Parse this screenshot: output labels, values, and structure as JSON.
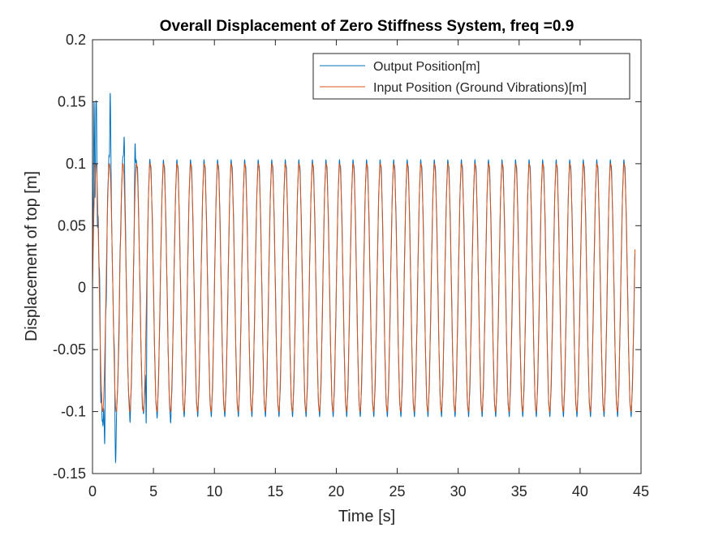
{
  "chart_data": {
    "type": "line",
    "title": "Overall Displacement of Zero Stiffness System, freq =0.9",
    "xlabel": "Time [s]",
    "ylabel": "Displacement of top [m]",
    "xlim": [
      0,
      45
    ],
    "ylim": [
      -0.15,
      0.2
    ],
    "xticks": [
      0,
      5,
      10,
      15,
      20,
      25,
      30,
      35,
      40,
      45
    ],
    "yticks": [
      -0.15,
      -0.1,
      -0.05,
      0,
      0.05,
      0.1,
      0.15,
      0.2
    ],
    "ytick_labels": [
      "-0.15",
      "-0.1",
      "-0.05",
      "0",
      "0.05",
      "0.1",
      "0.15",
      "0.2"
    ],
    "grid": false,
    "legend_position": "top-right",
    "x_end": 44.5,
    "series": [
      {
        "name": "Output Position[m]",
        "color": "#0072BD",
        "frequency_hz": 0.9,
        "steady_amplitude": 0.102,
        "transient_peaks": [
          {
            "x": 0.13,
            "y": 0.148
          },
          {
            "x": 0.3,
            "y": 0.153
          },
          {
            "x": 0.8,
            "y": -0.11
          },
          {
            "x": 1.0,
            "y": -0.126
          },
          {
            "x": 1.45,
            "y": 0.156
          },
          {
            "x": 1.9,
            "y": -0.142
          },
          {
            "x": 2.6,
            "y": 0.12
          },
          {
            "x": 3.5,
            "y": 0.116
          },
          {
            "x": 4.4,
            "y": -0.108
          },
          {
            "x": 6.4,
            "y": -0.107
          }
        ]
      },
      {
        "name": "Input Position (Ground Vibrations)[m]",
        "color": "#D95319",
        "frequency_hz": 0.9,
        "amplitude": 0.1
      }
    ]
  }
}
